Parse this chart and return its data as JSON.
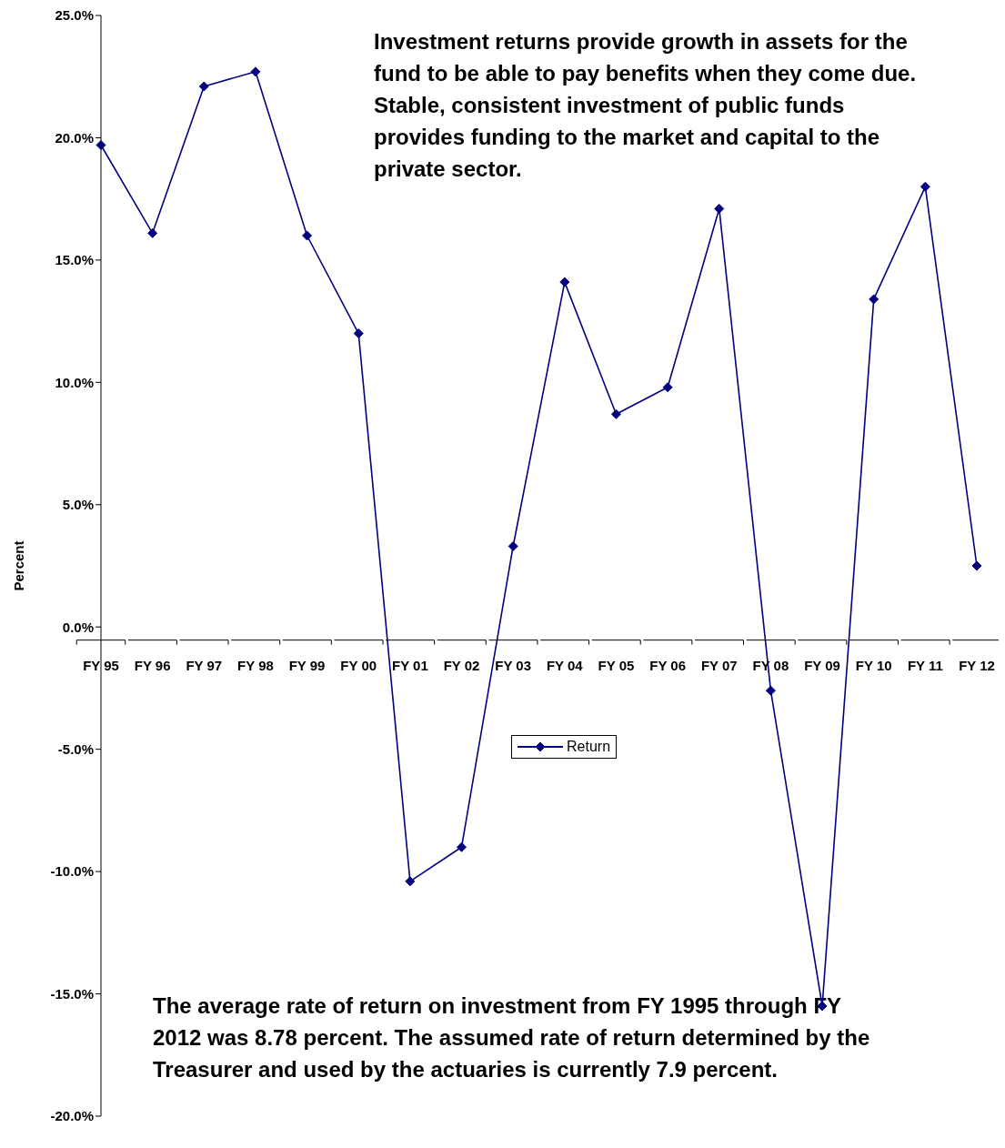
{
  "chart_data": {
    "type": "line",
    "ylabel": "Percent",
    "categories": [
      "FY 95",
      "FY 96",
      "FY 97",
      "FY 98",
      "FY 99",
      "FY 00",
      "FY 01",
      "FY 02",
      "FY 03",
      "FY 04",
      "FY 05",
      "FY 06",
      "FY 07",
      "FY 08",
      "FY 09",
      "FY 10",
      "FY 11",
      "FY 12"
    ],
    "series": [
      {
        "name": "Return",
        "color": "#000080",
        "values": [
          19.7,
          16.1,
          22.1,
          22.7,
          16.0,
          12.0,
          -10.4,
          -9.0,
          3.3,
          14.1,
          8.7,
          9.8,
          17.1,
          -2.6,
          -15.5,
          13.4,
          18.0,
          2.5
        ]
      }
    ],
    "ylim": [
      -20,
      25
    ],
    "yticks": [
      {
        "value": -20,
        "label": "-20.0%"
      },
      {
        "value": -15,
        "label": "-15.0%"
      },
      {
        "value": -10,
        "label": "-10.0%"
      },
      {
        "value": -5,
        "label": "-5.0%"
      },
      {
        "value": 0,
        "label": "0.0%"
      },
      {
        "value": 5,
        "label": "5.0%"
      },
      {
        "value": 10,
        "label": "10.0%"
      },
      {
        "value": 15,
        "label": "15.0%"
      },
      {
        "value": 20,
        "label": "20.0%"
      },
      {
        "value": 25,
        "label": "25.0%"
      }
    ],
    "grid": false,
    "legend": "center",
    "marker": "diamond",
    "line_style": "solid",
    "annotations": [
      "Investment returns provide growth in assets for the fund to be able to pay benefits when they come due.  Stable, consistent investment of public funds provides funding to the market and capital to the private sector.",
      "The average rate of return on investment from FY 1995 through FY 2012 was 8.78 percent.  The assumed rate of return determined by the Treasurer and used by the actuaries is currently 7.9 percent."
    ]
  }
}
